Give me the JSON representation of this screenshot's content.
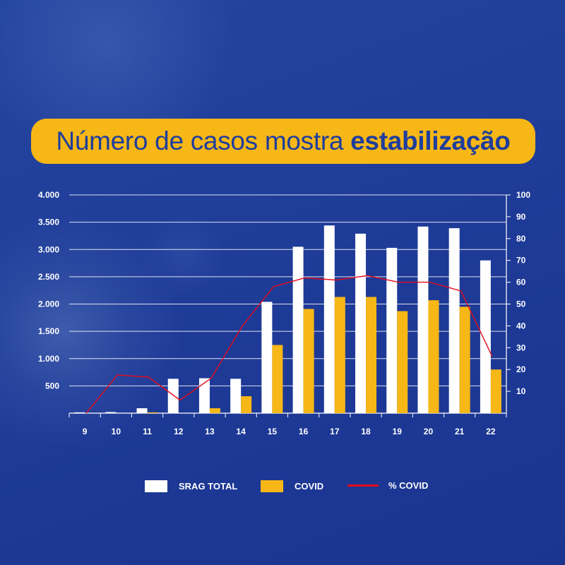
{
  "title": {
    "prefix": "Número de casos mostra",
    "emphasis": "estabilização"
  },
  "legend": {
    "srag": "SRAG TOTAL",
    "covid": "COVID",
    "pct": "% COVID"
  },
  "colors": {
    "background": "#1f3e9c",
    "title_pill": "#f7b716",
    "srag_bar": "#ffffff",
    "covid_bar": "#f7b716",
    "pct_line": "#e30b1c"
  },
  "chart_data": {
    "type": "bar",
    "categories": [
      "9",
      "10",
      "11",
      "12",
      "13",
      "14",
      "15",
      "16",
      "17",
      "18",
      "19",
      "20",
      "21",
      "22"
    ],
    "series": [
      {
        "name": "SRAG TOTAL",
        "type": "bar",
        "axis": "left",
        "values": [
          15,
          20,
          90,
          630,
          640,
          630,
          2040,
          3050,
          3440,
          3290,
          3030,
          3420,
          3390,
          2800
        ]
      },
      {
        "name": "COVID",
        "type": "bar",
        "axis": "left",
        "values": [
          0,
          0,
          15,
          0,
          90,
          310,
          1250,
          1910,
          2130,
          2130,
          1870,
          2070,
          1950,
          800
        ]
      },
      {
        "name": "% COVID",
        "type": "line",
        "axis": "right",
        "values": [
          0,
          17.5,
          16.5,
          6,
          16,
          40,
          58,
          62,
          61,
          63,
          60,
          60,
          56,
          26
        ]
      }
    ],
    "y_left": {
      "ylim": [
        0,
        4000
      ],
      "ticks": [
        "500",
        "1.000",
        "1.500",
        "2.000",
        "2.500",
        "3.000",
        "3.500",
        "4.000"
      ]
    },
    "y_right": {
      "ylim": [
        0,
        100
      ],
      "ticks": [
        "10",
        "20",
        "30",
        "40",
        "50",
        "60",
        "70",
        "80",
        "90",
        "100"
      ]
    },
    "grid": true,
    "legend_position": "bottom"
  }
}
